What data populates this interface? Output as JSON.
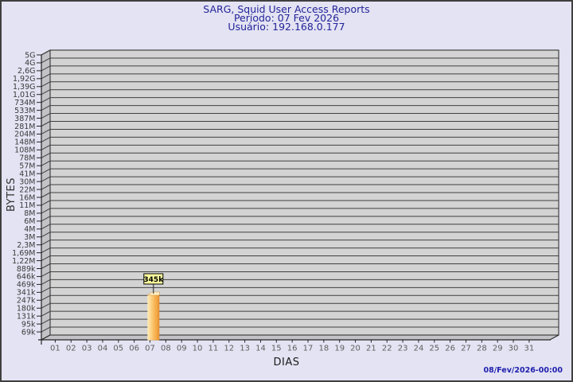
{
  "page": {
    "background": "#E3E3F3",
    "border_color": "#3F3F3F"
  },
  "title": {
    "line1": "SARG, Squid User Access Reports",
    "line2": "Período: 07 Fev 2026",
    "line3": "Usuário: 192.168.0.177"
  },
  "footer": {
    "timestamp": "08/Fev/2026-00:00"
  },
  "colors": {
    "title_text": "#232399",
    "timestamp_text": "#1F1FAE",
    "plot_panel": "#D3D3D3",
    "plot_wall": "#C3C3C7",
    "grid_line": "#3F3F3F",
    "axis_line": "#242424",
    "y_label_text": "#3A3A3A",
    "x_label_text": "#5E5E5E",
    "bar_gradient": [
      "#FFECB8",
      "#FDD489",
      "#F8B858",
      "#F2A441",
      "#E08A2E"
    ],
    "bar_top_face": "#FFF2C8",
    "value_box_bg": "#FFFF9E",
    "value_box_border": "#000000",
    "value_box_text": "#000000"
  },
  "chart_data": {
    "type": "bar",
    "title": "SARG, Squid User Access Reports",
    "subtitle": "Período: 07 Fev 2026",
    "user": "Usuário: 192.168.0.177",
    "xlabel": "DIAS",
    "ylabel": "BYTES",
    "grid": true,
    "legend": "none",
    "y_axis_scale": "logarithmic",
    "y_tick_labels_top_to_bottom": [
      "5G",
      "4G",
      "2,6G",
      "1,92G",
      "1,39G",
      "1,01G",
      "734M",
      "533M",
      "387M",
      "281M",
      "204M",
      "148M",
      "108M",
      "78M",
      "57M",
      "41M",
      "30M",
      "22M",
      "16M",
      "11M",
      "8M",
      "6M",
      "4M",
      "3M",
      "2,3M",
      "1,69M",
      "1,22M",
      "889k",
      "646k",
      "469k",
      "341k",
      "247k",
      "180k",
      "131k",
      "95k",
      "69k"
    ],
    "x_tick_labels": [
      "01",
      "02",
      "03",
      "04",
      "05",
      "06",
      "07",
      "08",
      "09",
      "10",
      "11",
      "12",
      "13",
      "14",
      "15",
      "16",
      "17",
      "18",
      "19",
      "20",
      "21",
      "22",
      "23",
      "24",
      "25",
      "26",
      "27",
      "28",
      "29",
      "30",
      "31"
    ],
    "values_bytes": [
      0,
      0,
      0,
      0,
      0,
      0,
      345000,
      0,
      0,
      0,
      0,
      0,
      0,
      0,
      0,
      0,
      0,
      0,
      0,
      0,
      0,
      0,
      0,
      0,
      0,
      0,
      0,
      0,
      0,
      0,
      0
    ],
    "value_labels": [
      "",
      "",
      "",
      "",
      "",
      "",
      "345k",
      "",
      "",
      "",
      "",
      "",
      "",
      "",
      "",
      "",
      "",
      "",
      "",
      "",
      "",
      "",
      "",
      "",
      "",
      "",
      "",
      "",
      "",
      "",
      ""
    ],
    "data_points": [
      {
        "day": "07",
        "value_bytes": 345000,
        "label": "345k"
      }
    ]
  }
}
